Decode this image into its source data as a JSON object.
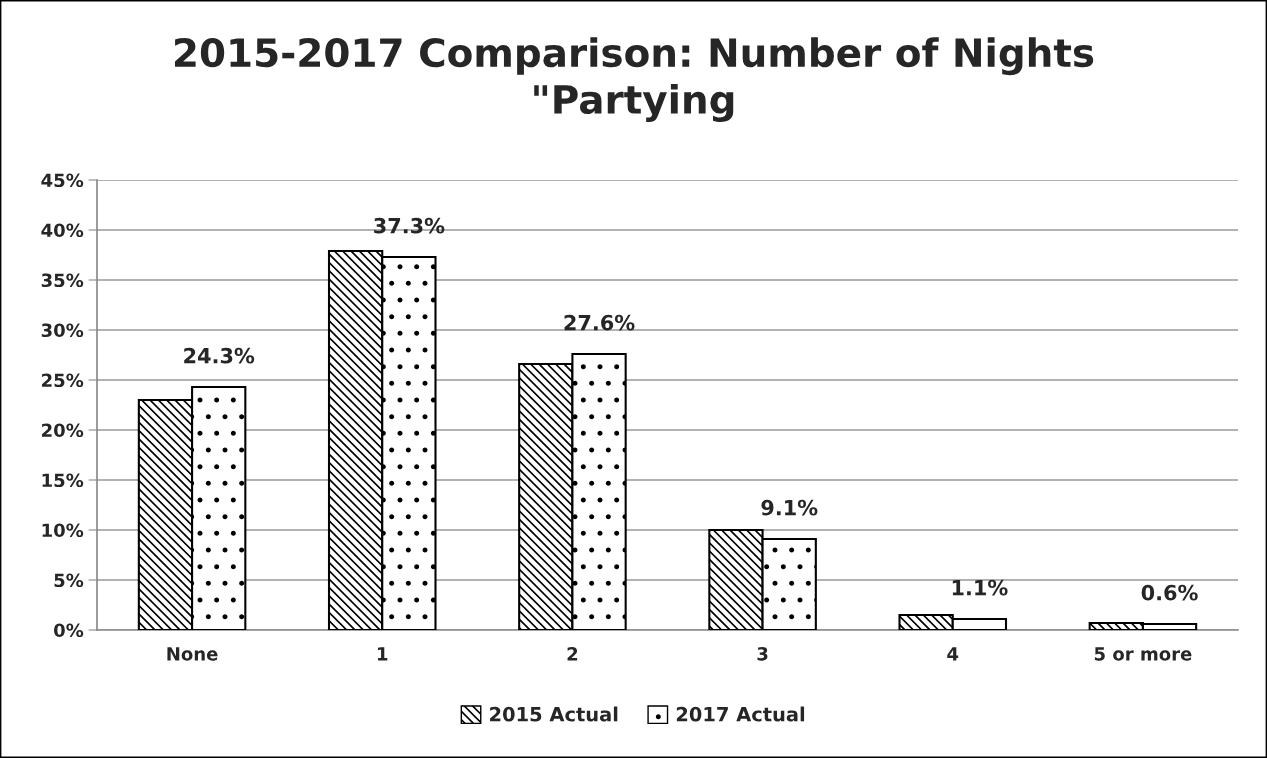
{
  "chart_data": {
    "type": "bar",
    "title": "2015-2017 Comparison: Number of Nights\n\"Partying",
    "categories": [
      "None",
      "1",
      "2",
      "3",
      "4",
      "5 or more"
    ],
    "series": [
      {
        "name": "2015 Actual",
        "color": "#000000",
        "values": [
          23.0,
          37.9,
          26.6,
          10.0,
          1.5,
          0.7
        ]
      },
      {
        "name": "2017 Actual",
        "color": "#000000",
        "values": [
          24.3,
          37.3,
          27.6,
          9.1,
          1.1,
          0.6
        ],
        "value_labels": [
          "24.3%",
          "37.3%",
          "27.6%",
          "9.1%",
          "1.1%",
          "0.6%"
        ]
      }
    ],
    "ylim": [
      0,
      45
    ],
    "yticks": [
      {
        "value": 0,
        "label": "0%"
      },
      {
        "value": 5,
        "label": "5%"
      },
      {
        "value": 10,
        "label": "10%"
      },
      {
        "value": 15,
        "label": "15%"
      },
      {
        "value": 20,
        "label": "20%"
      },
      {
        "value": 25,
        "label": "25%"
      },
      {
        "value": 30,
        "label": "30%"
      },
      {
        "value": 35,
        "label": "35%"
      },
      {
        "value": 40,
        "label": "40%"
      },
      {
        "value": 45,
        "label": "45%"
      }
    ],
    "grid": "y",
    "legend": "bottom"
  }
}
